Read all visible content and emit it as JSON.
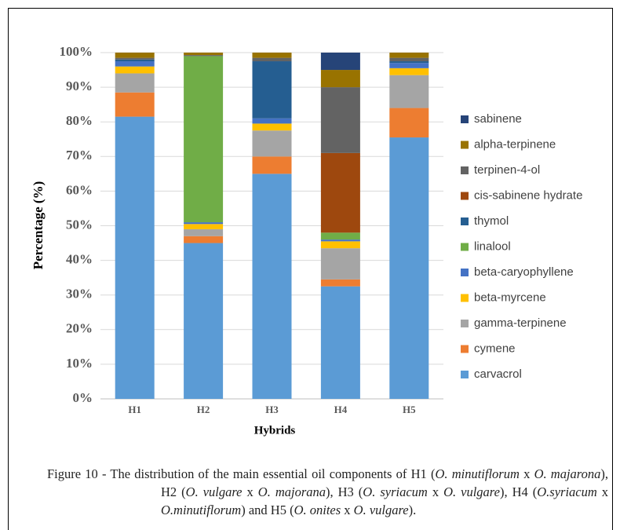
{
  "chart_data": {
    "type": "stacked_bar",
    "ylabel": "Percentage (%)",
    "xlabel": "Hybrids",
    "categories": [
      "H1",
      "H2",
      "H3",
      "H4",
      "H5"
    ],
    "ylim": [
      0,
      100
    ],
    "yticks": [
      {
        "value": 0,
        "label": "0%"
      },
      {
        "value": 10,
        "label": "10%"
      },
      {
        "value": 20,
        "label": "20%"
      },
      {
        "value": 30,
        "label": "30%"
      },
      {
        "value": 40,
        "label": "40%"
      },
      {
        "value": 50,
        "label": "50%"
      },
      {
        "value": 60,
        "label": "60%"
      },
      {
        "value": 70,
        "label": "70%"
      },
      {
        "value": 80,
        "label": "80%"
      },
      {
        "value": 90,
        "label": "90%"
      },
      {
        "value": 100,
        "label": "100%"
      }
    ],
    "grid": true,
    "legend": "right",
    "series": [
      {
        "name": "carvacrol",
        "color": "#5b9bd5",
        "values": [
          81.5,
          45,
          65,
          32.5,
          75.5
        ]
      },
      {
        "name": "cymene",
        "color": "#ed7d31",
        "values": [
          7,
          2,
          5,
          2,
          8.5
        ]
      },
      {
        "name": "gamma-terpinene",
        "color": "#a5a5a5",
        "values": [
          5.5,
          2,
          7.5,
          9,
          9.5
        ]
      },
      {
        "name": "beta-myrcene",
        "color": "#ffc000",
        "values": [
          2,
          1.5,
          2,
          2,
          2
        ]
      },
      {
        "name": "beta-caryophyllene",
        "color": "#4472c4",
        "values": [
          1.5,
          0.5,
          1.5,
          0.5,
          1.5
        ]
      },
      {
        "name": "linalool",
        "color": "#70ad47",
        "values": [
          0,
          48,
          0,
          2,
          0
        ]
      },
      {
        "name": "thymol",
        "color": "#255e91",
        "values": [
          0.5,
          0,
          16.5,
          0,
          0.5
        ]
      },
      {
        "name": "cis-sabinene hydrate",
        "color": "#9e480e",
        "values": [
          0,
          0,
          0,
          23,
          0
        ]
      },
      {
        "name": "terpinen-4-ol",
        "color": "#636363",
        "values": [
          0.5,
          0.3,
          1,
          19,
          1
        ]
      },
      {
        "name": "alpha-terpinene",
        "color": "#997300",
        "values": [
          1.5,
          0.7,
          1.5,
          5,
          1.5
        ]
      },
      {
        "name": "sabinene",
        "color": "#264478",
        "values": [
          0,
          0,
          0,
          5,
          0
        ]
      }
    ]
  },
  "caption": [
    {
      "text": "Figure 10 - The distribution of the main essential oil components of H1 (",
      "italic": false
    },
    {
      "text": "O. minutiflorum",
      "italic": true
    },
    {
      "text": " x ",
      "italic": false
    },
    {
      "text": "O. majarona",
      "italic": true
    },
    {
      "text": "), H2 (",
      "italic": false
    },
    {
      "text": "O. vulgare",
      "italic": true
    },
    {
      "text": " x ",
      "italic": false
    },
    {
      "text": "O. majorana",
      "italic": true
    },
    {
      "text": "), H3 (",
      "italic": false
    },
    {
      "text": "O. syriacum",
      "italic": true
    },
    {
      "text": " x ",
      "italic": false
    },
    {
      "text": "O. vulgare",
      "italic": true
    },
    {
      "text": "), H4 (",
      "italic": false
    },
    {
      "text": "O.syriacum",
      "italic": true
    },
    {
      "text": " x ",
      "italic": false
    },
    {
      "text": "O.minutiflorum",
      "italic": true
    },
    {
      "text": ") and H5 (",
      "italic": false
    },
    {
      "text": "O. onites",
      "italic": true
    },
    {
      "text": " x ",
      "italic": false
    },
    {
      "text": "O. vulgare",
      "italic": true
    },
    {
      "text": ").",
      "italic": false
    }
  ]
}
